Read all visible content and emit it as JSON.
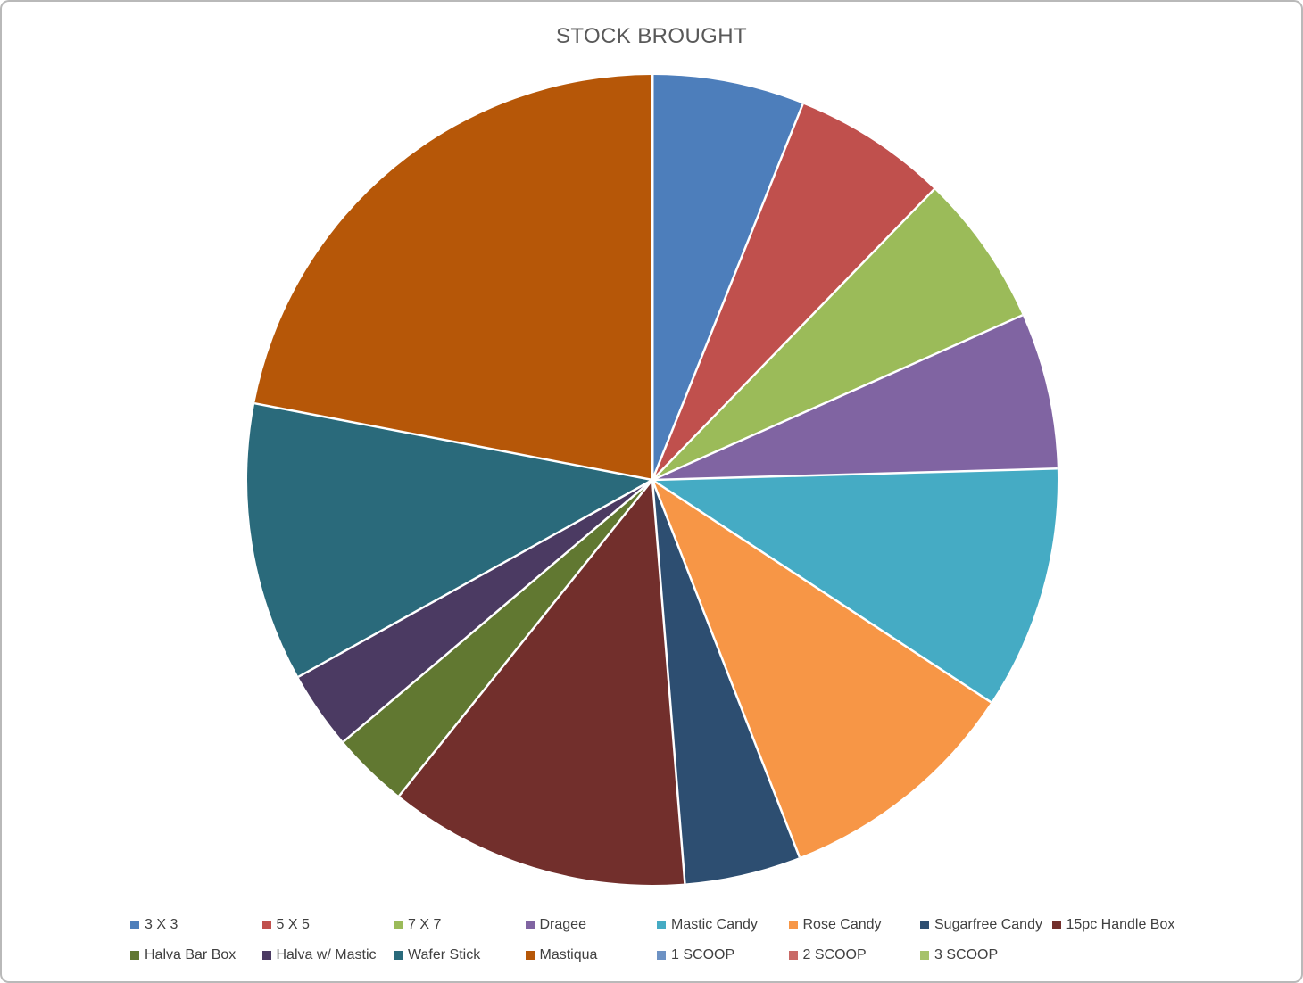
{
  "chart_data": {
    "type": "pie",
    "title": "STOCK BROUGHT",
    "legend_position": "bottom",
    "start_angle_deg": 0,
    "direction": "clockwise",
    "slices": [
      {
        "label": "3 X 3",
        "value_pct": 6.1,
        "angle_deg": 21.8,
        "color": "#4D7EBB"
      },
      {
        "label": "5 X 5",
        "value_pct": 6.2,
        "angle_deg": 22.3,
        "color": "#C0504D"
      },
      {
        "label": "7 X 7",
        "value_pct": 6.1,
        "angle_deg": 21.9,
        "color": "#9BBB59"
      },
      {
        "label": "Dragee",
        "value_pct": 6.2,
        "angle_deg": 22.4,
        "color": "#8064A2"
      },
      {
        "label": "Mastic Candy",
        "value_pct": 9.7,
        "angle_deg": 34.9,
        "color": "#45ABC4"
      },
      {
        "label": "Rose Candy",
        "value_pct": 9.8,
        "angle_deg": 35.4,
        "color": "#F79646"
      },
      {
        "label": "Sugarfree Candy",
        "value_pct": 4.6,
        "angle_deg": 16.7,
        "color": "#2D4E71"
      },
      {
        "label": "15pc Handle Box",
        "value_pct": 12.0,
        "angle_deg": 43.3,
        "color": "#722F2C"
      },
      {
        "label": "Halva Bar Box",
        "value_pct": 3.1,
        "angle_deg": 11.0,
        "color": "#617831"
      },
      {
        "label": "Halva w/ Mastic",
        "value_pct": 3.1,
        "angle_deg": 11.2,
        "color": "#4B3A62"
      },
      {
        "label": "Wafer Stick",
        "value_pct": 11.1,
        "angle_deg": 40.0,
        "color": "#2A6A7B"
      },
      {
        "label": "Mastiqua",
        "value_pct": 22.0,
        "angle_deg": 79.1,
        "color": "#B65708"
      },
      {
        "label": "1 SCOOP",
        "value_pct": 0,
        "angle_deg": 0,
        "color": "#6D92C4"
      },
      {
        "label": "2 SCOOP",
        "value_pct": 0,
        "angle_deg": 0,
        "color": "#C96A67"
      },
      {
        "label": "3 SCOOP",
        "value_pct": 0,
        "angle_deg": 0,
        "color": "#A6C26A"
      }
    ]
  },
  "canvas": {
    "background": "#FFFFFF",
    "border_color": "#B9B9B9",
    "title_color": "#595959",
    "legend_text_color": "#404040",
    "separator_color": "#FFFFFF"
  }
}
